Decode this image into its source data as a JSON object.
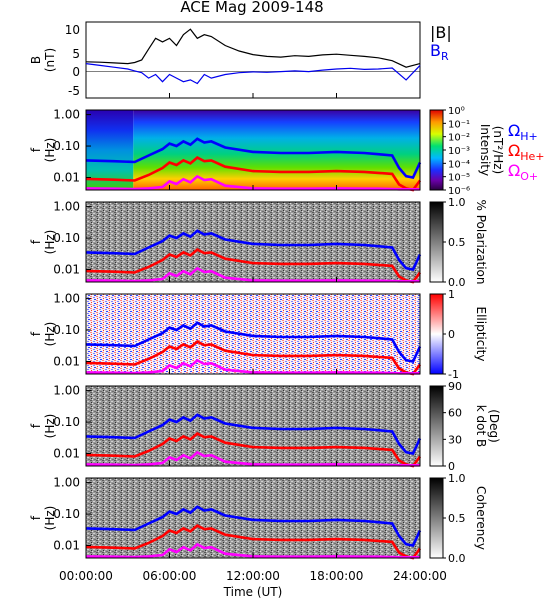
{
  "title": "ACE Mag 2009-148",
  "xlabel": "Time (UT)",
  "xticks": [
    "00:00:00",
    "06:00:00",
    "12:00:00",
    "18:00:00",
    "24:00:00"
  ],
  "colors": {
    "b_total": "#000000",
    "b_r": "#0000ee",
    "h_plus": "#0000ff",
    "he_plus": "#ff0000",
    "o_plus": "#ff00ff"
  },
  "legend": {
    "b_total": "|B|",
    "b_r": "B",
    "b_r_sub": "R",
    "omega": "Ω",
    "h_plus": "H+",
    "he_plus": "He+",
    "o_plus": "O+"
  },
  "panel1": {
    "ylabel_main": "B",
    "ylabel_unit": "(nT)",
    "yticks": [
      "10",
      "5",
      "0",
      "-5"
    ],
    "ylim": [
      -7.5,
      13.5
    ]
  },
  "freq_panels": {
    "ylabel_main": "f",
    "ylabel_unit": "(Hz)",
    "yticks": [
      "1.00",
      "0.10",
      "0.01"
    ]
  },
  "colorbars": [
    {
      "label": "Intensity",
      "unit": "(nT²/Hz)",
      "ticks": [
        "10⁰",
        "10⁻¹",
        "10⁻²",
        "10⁻³",
        "10⁻⁴",
        "10⁻⁵",
        "10⁻⁶"
      ],
      "scale": "rainbow"
    },
    {
      "label": "% Polarization",
      "unit": "",
      "ticks": [
        "1.0",
        "0.5",
        "0.0"
      ],
      "scale": "gray"
    },
    {
      "label": "Ellipticity",
      "unit": "",
      "ticks": [
        "1",
        "0",
        "-1"
      ],
      "scale": "bwr"
    },
    {
      "label": "k dot B",
      "unit": "(Deg)",
      "ticks": [
        "90",
        "60",
        "30",
        "0"
      ],
      "scale": "gray"
    },
    {
      "label": "Coherency",
      "unit": "",
      "ticks": [
        "1.0",
        "0.5",
        "0.0"
      ],
      "scale": "gray"
    }
  ],
  "chart_data": [
    {
      "type": "line",
      "title": "ACE Mag 2009-148",
      "ylabel": "B (nT)",
      "xlabel": "Time (UT)",
      "xlim_hours": [
        0,
        24
      ],
      "ylim": [
        -7.5,
        13.5
      ],
      "series": [
        {
          "name": "|B|",
          "x_hours": [
            0,
            1,
            2,
            3,
            3.5,
            4,
            4.5,
            5,
            5.5,
            6,
            6.5,
            7,
            7.5,
            8,
            8.5,
            9,
            10,
            11,
            12,
            13,
            14,
            15,
            16,
            17,
            18,
            19,
            20,
            21,
            22,
            23,
            24
          ],
          "values": [
            2.5,
            2.4,
            2.2,
            2.0,
            2.3,
            3.0,
            6.0,
            9.0,
            8.0,
            9.0,
            7.0,
            10.0,
            11.5,
            9.0,
            10.0,
            9.5,
            7.0,
            5.5,
            4.5,
            4.0,
            3.8,
            4.2,
            4.0,
            4.4,
            4.6,
            4.3,
            4.0,
            3.6,
            2.8,
            1.0,
            2.0
          ]
        },
        {
          "name": "B_R",
          "x_hours": [
            0,
            1,
            2,
            3,
            3.5,
            4,
            4.5,
            5,
            5.5,
            6,
            6.5,
            7,
            7.5,
            8,
            8.5,
            9,
            10,
            11,
            12,
            13,
            14,
            15,
            16,
            17,
            18,
            19,
            20,
            21,
            22,
            23,
            24
          ],
          "values": [
            2.0,
            1.5,
            1.0,
            0.5,
            0.0,
            -0.5,
            -2.0,
            -1.0,
            -3.0,
            -1.0,
            -2.0,
            -3.0,
            -2.5,
            -3.5,
            -1.0,
            -2.0,
            -1.0,
            -0.5,
            -0.3,
            -0.4,
            -0.2,
            0.0,
            -0.2,
            0.2,
            0.5,
            0.7,
            0.4,
            0.5,
            0.8,
            -2.5,
            1.5
          ]
        }
      ]
    },
    {
      "type": "line",
      "description_of_overlays": "gyrofrequency traces on f (Hz) log axes in all five spectral panels",
      "xlim_hours": [
        0,
        24
      ],
      "ylim": [
        0.004,
        1.4
      ],
      "series": [
        {
          "name": "Ω H+",
          "x_hours": [
            0,
            2,
            3.5,
            4.5,
            5.5,
            6,
            6.5,
            7,
            7.5,
            8,
            8.5,
            9,
            10,
            12,
            14,
            16,
            18,
            20,
            21,
            22,
            22.5,
            23,
            23.5,
            24
          ],
          "values": [
            0.035,
            0.033,
            0.031,
            0.05,
            0.08,
            0.12,
            0.1,
            0.14,
            0.11,
            0.17,
            0.13,
            0.14,
            0.09,
            0.065,
            0.06,
            0.06,
            0.065,
            0.06,
            0.055,
            0.05,
            0.02,
            0.011,
            0.01,
            0.03
          ]
        },
        {
          "name": "Ω He+",
          "x_hours": [
            0,
            2,
            3.5,
            4.5,
            5.5,
            6,
            6.5,
            7,
            7.5,
            8,
            8.5,
            9,
            10,
            12,
            14,
            16,
            18,
            20,
            21,
            22,
            22.5,
            23,
            23.5,
            24
          ],
          "values": [
            0.009,
            0.0085,
            0.008,
            0.012,
            0.02,
            0.03,
            0.025,
            0.035,
            0.028,
            0.043,
            0.033,
            0.035,
            0.022,
            0.016,
            0.015,
            0.015,
            0.016,
            0.015,
            0.014,
            0.013,
            0.006,
            0.0045,
            0.004,
            0.008
          ]
        },
        {
          "name": "Ω O+",
          "x_hours": [
            0,
            2,
            3.5,
            4.5,
            5.5,
            6,
            6.5,
            7,
            7.5,
            8,
            8.5,
            9,
            10,
            12,
            14,
            16,
            18,
            20,
            21,
            22,
            22.5,
            23,
            23.5,
            24
          ],
          "values": [
            0.0045,
            0.0044,
            0.0043,
            0.0045,
            0.005,
            0.0075,
            0.0062,
            0.0088,
            0.007,
            0.0108,
            0.0083,
            0.0088,
            0.0055,
            0.0045,
            0.0044,
            0.0044,
            0.0045,
            0.0044,
            0.0044,
            0.0043,
            0.0042,
            0.0042,
            0.0042,
            0.0042
          ]
        }
      ]
    }
  ]
}
